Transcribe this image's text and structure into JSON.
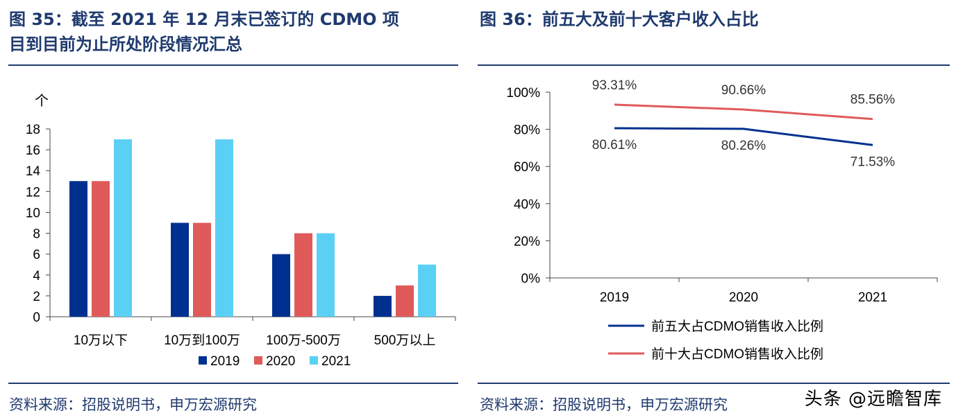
{
  "left": {
    "title_line1": "图 35：截至 2021 年 12 月末已签订的 CDMO 项",
    "title_line2": "目到目前为止所处阶段情况汇总",
    "source": "资料来源：招股说明书，申万宏源研究",
    "colors": {
      "2019": "#00308f",
      "2020": "#e05a5a",
      "2021": "#5ad0f5"
    },
    "chart_data": {
      "type": "bar",
      "unit_label": "个",
      "categories": [
        "10万以下",
        "10万到100万",
        "100万-500万",
        "500万以上"
      ],
      "series": [
        {
          "name": "2019",
          "values": [
            13,
            9,
            6,
            2
          ]
        },
        {
          "name": "2020",
          "values": [
            13,
            9,
            8,
            3
          ]
        },
        {
          "name": "2021",
          "values": [
            17,
            17,
            8,
            5
          ]
        }
      ],
      "ylim": [
        0,
        18
      ],
      "yticks": [
        "0",
        "2",
        "4",
        "6",
        "8",
        "10",
        "12",
        "14",
        "16",
        "18"
      ],
      "legend_position": "bottom",
      "grid": false
    }
  },
  "right": {
    "title": "图 36：前五大及前十大客户收入占比",
    "source": "资料来源：招股说明书，申万宏源研究",
    "colors": {
      "top5": "#00308f",
      "top10": "#e05a5a"
    },
    "chart_data": {
      "type": "line",
      "x": [
        "2019",
        "2020",
        "2021"
      ],
      "series": [
        {
          "name": "前五大占CDMO销售收入比例",
          "values": [
            80.61,
            80.26,
            71.53
          ],
          "labels": [
            "80.61%",
            "80.26%",
            "71.53%"
          ]
        },
        {
          "name": "前十大占CDMO销售收入比例",
          "values": [
            93.31,
            90.66,
            85.56
          ],
          "labels": [
            "93.31%",
            "90.66%",
            "85.56%"
          ]
        }
      ],
      "ylim": [
        0,
        100
      ],
      "yticks": [
        "0%",
        "20%",
        "40%",
        "60%",
        "80%",
        "100%"
      ],
      "legend_position": "bottom",
      "grid": false
    }
  },
  "watermark": "头条 @远瞻智库"
}
